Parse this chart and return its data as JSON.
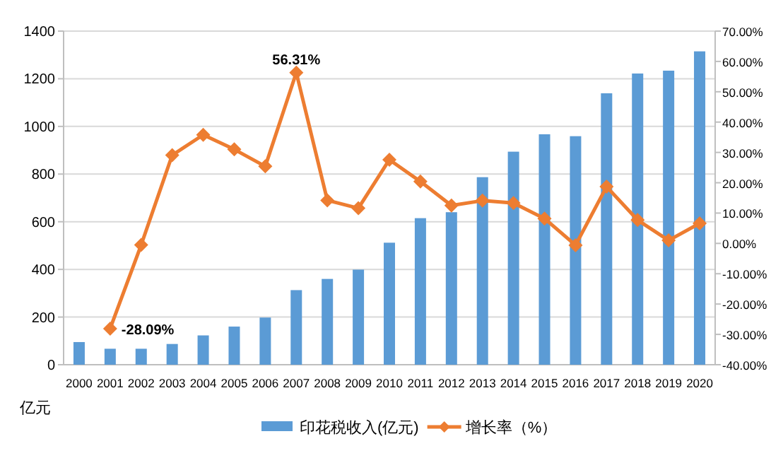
{
  "chart_data": {
    "type": "bar",
    "ylabel": "亿元",
    "categories": [
      "2000",
      "2001",
      "2002",
      "2003",
      "2004",
      "2005",
      "2006",
      "2007",
      "2008",
      "2009",
      "2010",
      "2011",
      "2012",
      "2013",
      "2014",
      "2015",
      "2016",
      "2017",
      "2018",
      "2019",
      "2020"
    ],
    "series": [
      {
        "name": "印花税收入(亿元)",
        "color": "#5b9bd5",
        "values": [
          95,
          67,
          67,
          87,
          123,
          160,
          198,
          313,
          360,
          399,
          512,
          615,
          640,
          787,
          894,
          967,
          959,
          1139,
          1222,
          1234,
          1315
        ]
      },
      {
        "name": "增长率（%）",
        "type": "line",
        "axis": "y2",
        "color": "#ed7d31",
        "marker": "diamond",
        "values": [
          null,
          -28.09,
          -0.5,
          29.1,
          35.8,
          31.0,
          25.4,
          56.31,
          14.2,
          11.6,
          27.6,
          20.4,
          12.5,
          14.1,
          13.3,
          8.2,
          -0.6,
          18.7,
          7.7,
          1.0,
          6.6
        ],
        "value_labels": [
          null,
          "-28.09%",
          null,
          null,
          null,
          null,
          null,
          "56.31%",
          null,
          null,
          null,
          null,
          null,
          null,
          null,
          null,
          null,
          null,
          null,
          null,
          null
        ]
      }
    ],
    "ylim": [
      0,
      1400
    ],
    "yticks": [
      0,
      200,
      400,
      600,
      800,
      1000,
      1200,
      1400
    ],
    "y2lim": [
      -40,
      70
    ],
    "y2ticks": [
      {
        "value": -40,
        "label": "-40.00%"
      },
      {
        "value": -30,
        "label": "-30.00%"
      },
      {
        "value": -20,
        "label": "-20.00%"
      },
      {
        "value": -10,
        "label": "-10.00%"
      },
      {
        "value": 0,
        "label": "0.00%"
      },
      {
        "value": 10,
        "label": "10.00%"
      },
      {
        "value": 20,
        "label": "20.00%"
      },
      {
        "value": 30,
        "label": "30.00%"
      },
      {
        "value": 40,
        "label": "40.00%"
      },
      {
        "value": 50,
        "label": "50.00%"
      },
      {
        "value": 60,
        "label": "60.00%"
      },
      {
        "value": 70,
        "label": "70.00%"
      }
    ],
    "grid": "y",
    "legend": "bottom"
  }
}
